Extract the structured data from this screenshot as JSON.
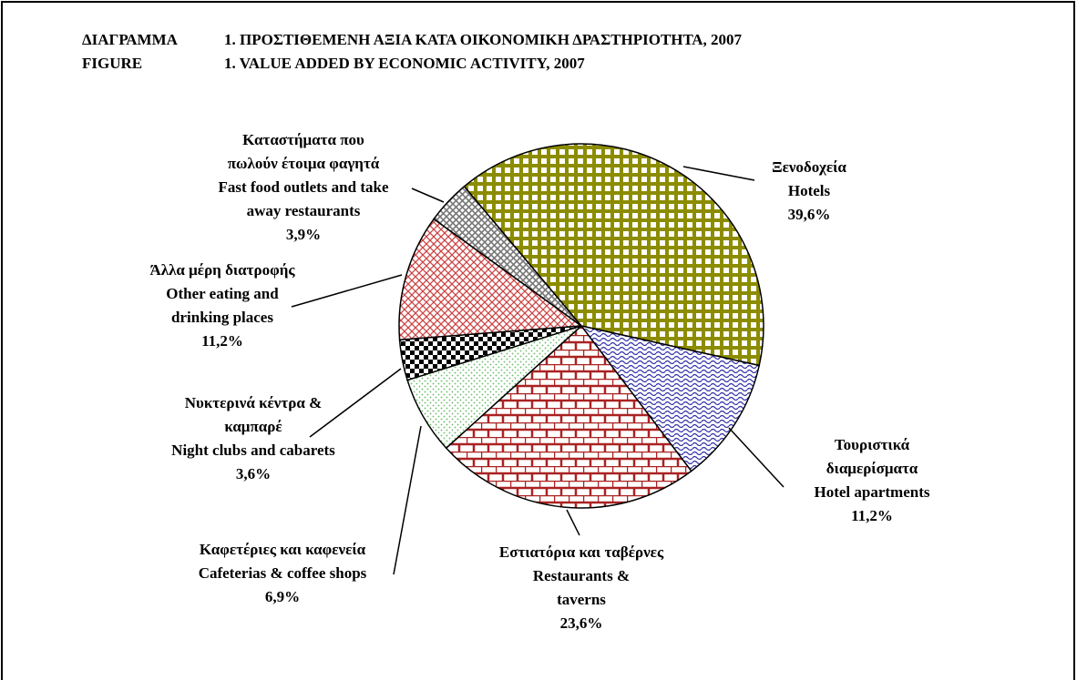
{
  "chart_data": {
    "type": "pie",
    "title": [
      [
        "ΔΙΑΓΡΑΜΜΑ",
        "1. ΠΡΟΣΤΙΘΕΜΕΝΗ ΑΞΙΑ ΚΑΤΑ ΟΙΚΟΝΟΜΙΚΗ ΔΡΑΣΤΗΡΙΟΤΗΤΑ, 2007"
      ],
      [
        "FIGURE",
        "1. VALUE ADDED BY ECONOMIC ACTIVITY, 2007"
      ]
    ],
    "categories": [
      [
        "Ξενοδοχεία",
        "Hotels"
      ],
      [
        "Τουριστικά",
        "διαμερίσματα",
        "Hotel apartments"
      ],
      [
        "Εστιατόρια και ταβέρνες",
        "Restaurants &",
        "taverns"
      ],
      [
        "Καφετέριες και καφενεία",
        "Cafeterias & coffee shops"
      ],
      [
        "Νυκτερινά κέντρα &",
        "καμπαρέ",
        "Night clubs and cabarets"
      ],
      [
        "Άλλα μέρη διατροφής",
        "Other eating and",
        "drinking places"
      ],
      [
        "Καταστήματα που",
        "πωλούν έτοιμα φαγητά",
        "Fast food outlets and take",
        "away restaurants"
      ]
    ],
    "values": [
      39.6,
      11.2,
      23.6,
      6.9,
      3.6,
      11.2,
      3.9
    ],
    "value_labels": [
      "39,6%",
      "11,2%",
      "23,6%",
      "6,9%",
      "3,6%",
      "11,2%",
      "3,9%"
    ],
    "colors": [
      "#8c8c00",
      "#3333aa",
      "#aa2222",
      "#66bb66",
      "#000000",
      "#cc4444",
      "#777777"
    ],
    "patterns": [
      "check",
      "wave",
      "brick",
      "dots",
      "checker",
      "cross",
      "diagonal"
    ]
  }
}
